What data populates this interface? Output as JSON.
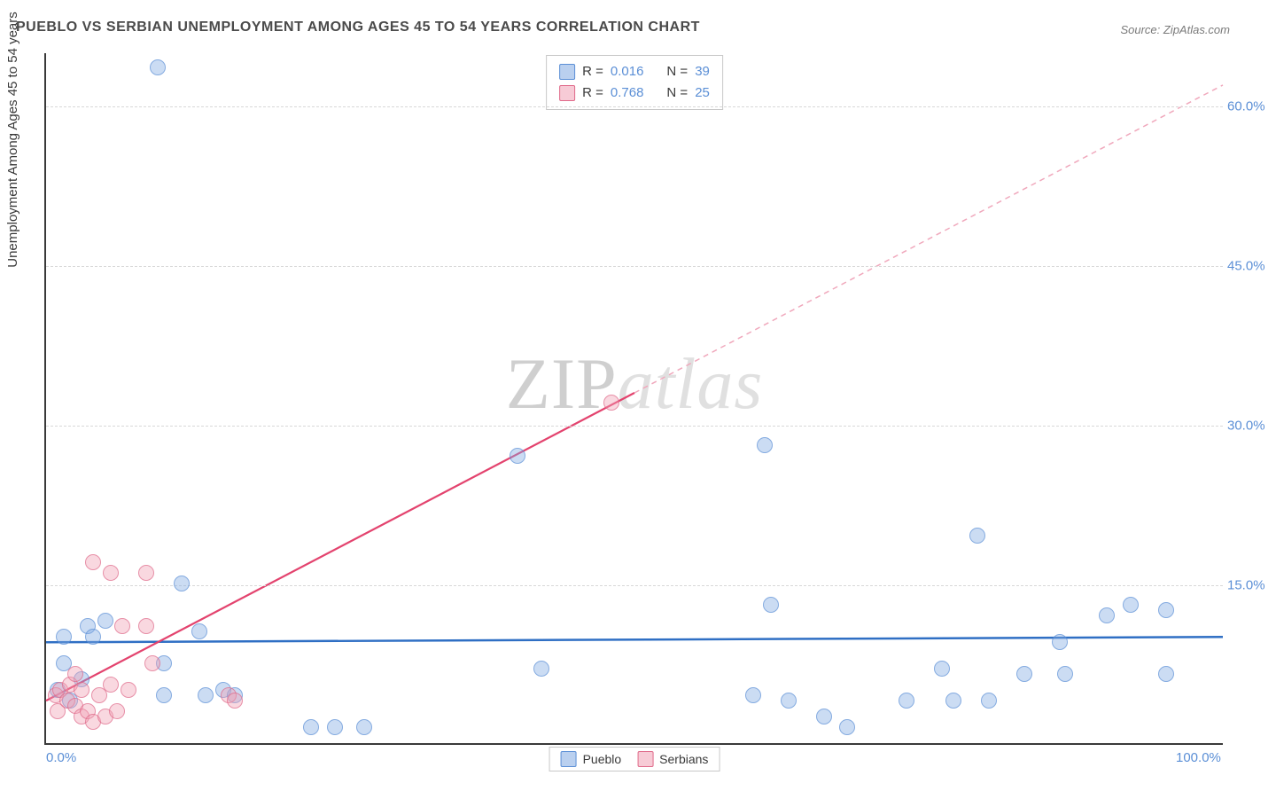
{
  "title": "PUEBLO VS SERBIAN UNEMPLOYMENT AMONG AGES 45 TO 54 YEARS CORRELATION CHART",
  "source_prefix": "Source: ",
  "source_name": "ZipAtlas.com",
  "ylabel": "Unemployment Among Ages 45 to 54 years",
  "watermark_a": "ZIP",
  "watermark_b": "atlas",
  "chart": {
    "type": "scatter",
    "xlim": [
      0,
      100
    ],
    "ylim": [
      0,
      65
    ],
    "xtick_labels": [
      {
        "pos": 0,
        "label": "0.0%"
      },
      {
        "pos": 100,
        "label": "100.0%"
      }
    ],
    "ytick_labels": [
      {
        "pos": 15,
        "label": "15.0%"
      },
      {
        "pos": 30,
        "label": "30.0%"
      },
      {
        "pos": 45,
        "label": "45.0%"
      },
      {
        "pos": 60,
        "label": "60.0%"
      }
    ],
    "gridlines_y": [
      15,
      30,
      45,
      60
    ],
    "background_color": "#ffffff",
    "grid_color": "#d8d8d8",
    "axis_color": "#3a3a3a",
    "tick_label_color": "#5b8fd6",
    "tick_fontsize": 15,
    "series": [
      {
        "name": "Pueblo",
        "color_fill": "rgba(130,170,225,0.55)",
        "color_stroke": "#5b8fd6",
        "marker_radius": 9,
        "R": "0.016",
        "N": "39",
        "trend": {
          "x1": 0,
          "y1": 9.5,
          "x2": 100,
          "y2": 10.0,
          "stroke": "#2f6fc4",
          "width": 2.5,
          "dash": null
        },
        "points": [
          {
            "x": 9.5,
            "y": 63.5
          },
          {
            "x": 1.5,
            "y": 7.5
          },
          {
            "x": 3.5,
            "y": 11.0
          },
          {
            "x": 4.0,
            "y": 10.0
          },
          {
            "x": 5.0,
            "y": 11.5
          },
          {
            "x": 11.5,
            "y": 15.0
          },
          {
            "x": 13.0,
            "y": 10.5
          },
          {
            "x": 10.0,
            "y": 7.5
          },
          {
            "x": 10.0,
            "y": 4.5
          },
          {
            "x": 15.0,
            "y": 5.0
          },
          {
            "x": 16.0,
            "y": 4.5
          },
          {
            "x": 13.5,
            "y": 4.5
          },
          {
            "x": 22.5,
            "y": 1.5
          },
          {
            "x": 24.5,
            "y": 1.5
          },
          {
            "x": 27.0,
            "y": 1.5
          },
          {
            "x": 40.0,
            "y": 27.0
          },
          {
            "x": 42.0,
            "y": 7.0
          },
          {
            "x": 60.0,
            "y": 4.5
          },
          {
            "x": 61.0,
            "y": 28.0
          },
          {
            "x": 61.5,
            "y": 13.0
          },
          {
            "x": 63.0,
            "y": 4.0
          },
          {
            "x": 66.0,
            "y": 2.5
          },
          {
            "x": 68.0,
            "y": 1.5
          },
          {
            "x": 73.0,
            "y": 4.0
          },
          {
            "x": 76.0,
            "y": 7.0
          },
          {
            "x": 77.0,
            "y": 4.0
          },
          {
            "x": 79.0,
            "y": 19.5
          },
          {
            "x": 80.0,
            "y": 4.0
          },
          {
            "x": 83.0,
            "y": 6.5
          },
          {
            "x": 86.0,
            "y": 9.5
          },
          {
            "x": 86.5,
            "y": 6.5
          },
          {
            "x": 90.0,
            "y": 12.0
          },
          {
            "x": 92.0,
            "y": 13.0
          },
          {
            "x": 95.0,
            "y": 12.5
          },
          {
            "x": 95.0,
            "y": 6.5
          },
          {
            "x": 2.0,
            "y": 4.0
          },
          {
            "x": 1.0,
            "y": 5.0
          },
          {
            "x": 3.0,
            "y": 6.0
          },
          {
            "x": 1.5,
            "y": 10.0
          }
        ]
      },
      {
        "name": "Serbians",
        "color_fill": "rgba(240,160,180,0.55)",
        "color_stroke": "#e06a8a",
        "marker_radius": 9,
        "R": "0.768",
        "N": "25",
        "trend_solid": {
          "x1": 0,
          "y1": 4.0,
          "x2": 50,
          "y2": 33.0,
          "stroke": "#e3436e",
          "width": 2.2
        },
        "trend_dash": {
          "x1": 50,
          "y1": 33.0,
          "x2": 100,
          "y2": 62.0,
          "stroke": "#f0a8bc",
          "width": 1.5,
          "dash": "6,5"
        },
        "points": [
          {
            "x": 0.8,
            "y": 4.5
          },
          {
            "x": 1.2,
            "y": 5.0
          },
          {
            "x": 1.0,
            "y": 3.0
          },
          {
            "x": 1.8,
            "y": 4.0
          },
          {
            "x": 2.0,
            "y": 5.5
          },
          {
            "x": 2.5,
            "y": 3.5
          },
          {
            "x": 2.5,
            "y": 6.5
          },
          {
            "x": 3.0,
            "y": 5.0
          },
          {
            "x": 3.0,
            "y": 2.5
          },
          {
            "x": 3.5,
            "y": 3.0
          },
          {
            "x": 4.0,
            "y": 2.0
          },
          {
            "x": 4.0,
            "y": 17.0
          },
          {
            "x": 4.5,
            "y": 4.5
          },
          {
            "x": 5.0,
            "y": 2.5
          },
          {
            "x": 5.5,
            "y": 16.0
          },
          {
            "x": 5.5,
            "y": 5.5
          },
          {
            "x": 6.0,
            "y": 3.0
          },
          {
            "x": 6.5,
            "y": 11.0
          },
          {
            "x": 7.0,
            "y": 5.0
          },
          {
            "x": 8.5,
            "y": 16.0
          },
          {
            "x": 8.5,
            "y": 11.0
          },
          {
            "x": 9.0,
            "y": 7.5
          },
          {
            "x": 15.5,
            "y": 4.5
          },
          {
            "x": 16.0,
            "y": 4.0
          },
          {
            "x": 48.0,
            "y": 32.0
          }
        ]
      }
    ],
    "legend_top_rows": [
      {
        "swatch": "blue",
        "r_label": "R = ",
        "r": "0.016",
        "n_label": "N = ",
        "n": "39"
      },
      {
        "swatch": "pink",
        "r_label": "R = ",
        "r": "0.768",
        "n_label": "N = ",
        "n": "25"
      }
    ],
    "legend_bottom": [
      {
        "swatch": "blue",
        "label": "Pueblo"
      },
      {
        "swatch": "pink",
        "label": "Serbians"
      }
    ]
  }
}
